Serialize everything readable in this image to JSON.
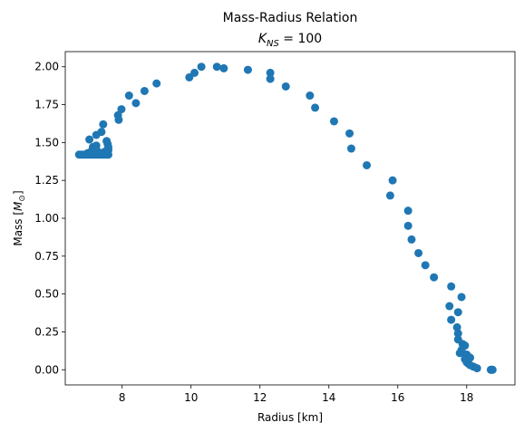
{
  "chart_data": {
    "type": "scatter",
    "title": "Mass-Radius Relation",
    "subtitle": "K_NS = 100",
    "subtitle_parts": {
      "symbol": "K",
      "subscript": "NS",
      "rest": " =  100"
    },
    "xlabel": "Radius [km]",
    "ylabel": "Mass [M_⊙]",
    "ylabel_parts": {
      "prefix": "Mass [",
      "symbol": "M",
      "subscript": "⊙",
      "suffix": "]"
    },
    "xlim": [
      6.35,
      19.4
    ],
    "ylim": [
      -0.1,
      2.1
    ],
    "xticks": [
      8,
      10,
      12,
      14,
      16,
      18
    ],
    "xtick_labels": [
      "8",
      "10",
      "12",
      "14",
      "16",
      "18"
    ],
    "yticks": [
      0.0,
      0.25,
      0.5,
      0.75,
      1.0,
      1.25,
      1.5,
      1.75,
      2.0
    ],
    "ytick_labels": [
      "0.00",
      "0.25",
      "0.50",
      "0.75",
      "1.00",
      "1.25",
      "1.50",
      "1.75",
      "2.00"
    ],
    "grid": false,
    "marker_color": "#1f77b4",
    "series": [
      {
        "points": [
          [
            6.75,
            1.42
          ],
          [
            6.8,
            1.42
          ],
          [
            6.85,
            1.42
          ],
          [
            6.9,
            1.42
          ],
          [
            6.95,
            1.42
          ],
          [
            7.0,
            1.42
          ],
          [
            7.05,
            1.42
          ],
          [
            7.1,
            1.42
          ],
          [
            7.15,
            1.42
          ],
          [
            7.2,
            1.42
          ],
          [
            7.25,
            1.42
          ],
          [
            7.3,
            1.42
          ],
          [
            7.35,
            1.42
          ],
          [
            7.4,
            1.42
          ],
          [
            7.45,
            1.42
          ],
          [
            7.5,
            1.42
          ],
          [
            7.55,
            1.42
          ],
          [
            7.6,
            1.42
          ],
          [
            7.0,
            1.43
          ],
          [
            7.1,
            1.44
          ],
          [
            7.2,
            1.45
          ],
          [
            7.3,
            1.44
          ],
          [
            7.5,
            1.44
          ],
          [
            7.6,
            1.45
          ],
          [
            7.15,
            1.47
          ],
          [
            7.25,
            1.48
          ],
          [
            7.6,
            1.47
          ],
          [
            7.58,
            1.49
          ],
          [
            7.55,
            1.51
          ],
          [
            7.05,
            1.52
          ],
          [
            7.25,
            1.55
          ],
          [
            7.4,
            1.57
          ],
          [
            7.45,
            1.62
          ],
          [
            7.9,
            1.65
          ],
          [
            7.88,
            1.68
          ],
          [
            7.98,
            1.72
          ],
          [
            8.2,
            1.81
          ],
          [
            8.4,
            1.76
          ],
          [
            8.65,
            1.84
          ],
          [
            9.0,
            1.89
          ],
          [
            9.95,
            1.93
          ],
          [
            10.1,
            1.96
          ],
          [
            10.3,
            2.0
          ],
          [
            10.75,
            2.0
          ],
          [
            10.95,
            1.99
          ],
          [
            11.65,
            1.98
          ],
          [
            12.3,
            1.96
          ],
          [
            12.3,
            1.92
          ],
          [
            12.75,
            1.87
          ],
          [
            13.45,
            1.81
          ],
          [
            13.6,
            1.73
          ],
          [
            14.15,
            1.64
          ],
          [
            14.6,
            1.56
          ],
          [
            14.65,
            1.46
          ],
          [
            15.1,
            1.35
          ],
          [
            15.85,
            1.25
          ],
          [
            15.78,
            1.15
          ],
          [
            16.3,
            1.05
          ],
          [
            16.3,
            0.95
          ],
          [
            16.4,
            0.86
          ],
          [
            16.6,
            0.77
          ],
          [
            16.8,
            0.69
          ],
          [
            17.05,
            0.61
          ],
          [
            17.55,
            0.55
          ],
          [
            17.85,
            0.48
          ],
          [
            17.5,
            0.42
          ],
          [
            17.75,
            0.38
          ],
          [
            17.55,
            0.33
          ],
          [
            17.72,
            0.28
          ],
          [
            17.75,
            0.24
          ],
          [
            17.75,
            0.2
          ],
          [
            17.88,
            0.17
          ],
          [
            17.95,
            0.16
          ],
          [
            17.85,
            0.13
          ],
          [
            17.8,
            0.11
          ],
          [
            18.0,
            0.1
          ],
          [
            18.1,
            0.08
          ],
          [
            17.95,
            0.07
          ],
          [
            18.0,
            0.05
          ],
          [
            18.05,
            0.04
          ],
          [
            18.1,
            0.03
          ],
          [
            18.2,
            0.02
          ],
          [
            18.3,
            0.01
          ],
          [
            18.7,
            0.0
          ],
          [
            18.72,
            0.0
          ],
          [
            18.75,
            0.0
          ]
        ]
      }
    ]
  }
}
